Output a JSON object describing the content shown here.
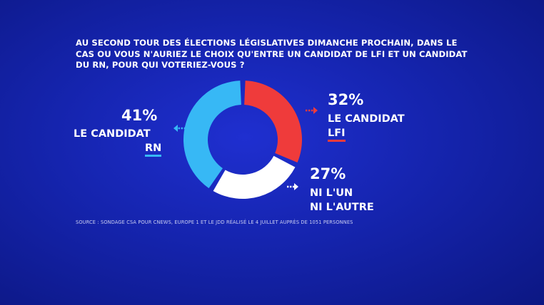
{
  "question": "AU SECOND TOUR DES ÉLECTIONS LÉGISLATIVES DIMANCHE PROCHAIN, DANS LE CAS OU VOUS N'AURIEZ LE CHOIX QU'ENTRE UN CANDIDAT DE LFI ET UN CANDIDAT DU RN, POUR QUI VOTERIEZ-VOUS ?",
  "source": "SOURCE : SONDAGE CSA POUR CNEWS, EUROPE 1 ET LE JDD RÉALISÉ LE 4 JUILLET AUPRÈS DE 1051 PERSONNES",
  "colors": {
    "lfi": "#ef3b3b",
    "rn": "#37b8f5",
    "neither": "#ffffff",
    "background": "#1524ae"
  },
  "chart_data": {
    "type": "pie",
    "donut": true,
    "categories": [
      "LE CANDIDAT LFI",
      "NI L'UN NI L'AUTRE",
      "LE CANDIDAT RN"
    ],
    "values": [
      32,
      27,
      41
    ],
    "unit": "%",
    "labels": {
      "lfi": {
        "pct": "32%",
        "line1": "LE CANDIDAT",
        "line2": "LFI"
      },
      "neither": {
        "pct": "27%",
        "line1": "NI L'UN",
        "line2": "NI L'AUTRE"
      },
      "rn": {
        "pct": "41%",
        "line1": "LE CANDIDAT",
        "line2": "RN"
      }
    }
  }
}
